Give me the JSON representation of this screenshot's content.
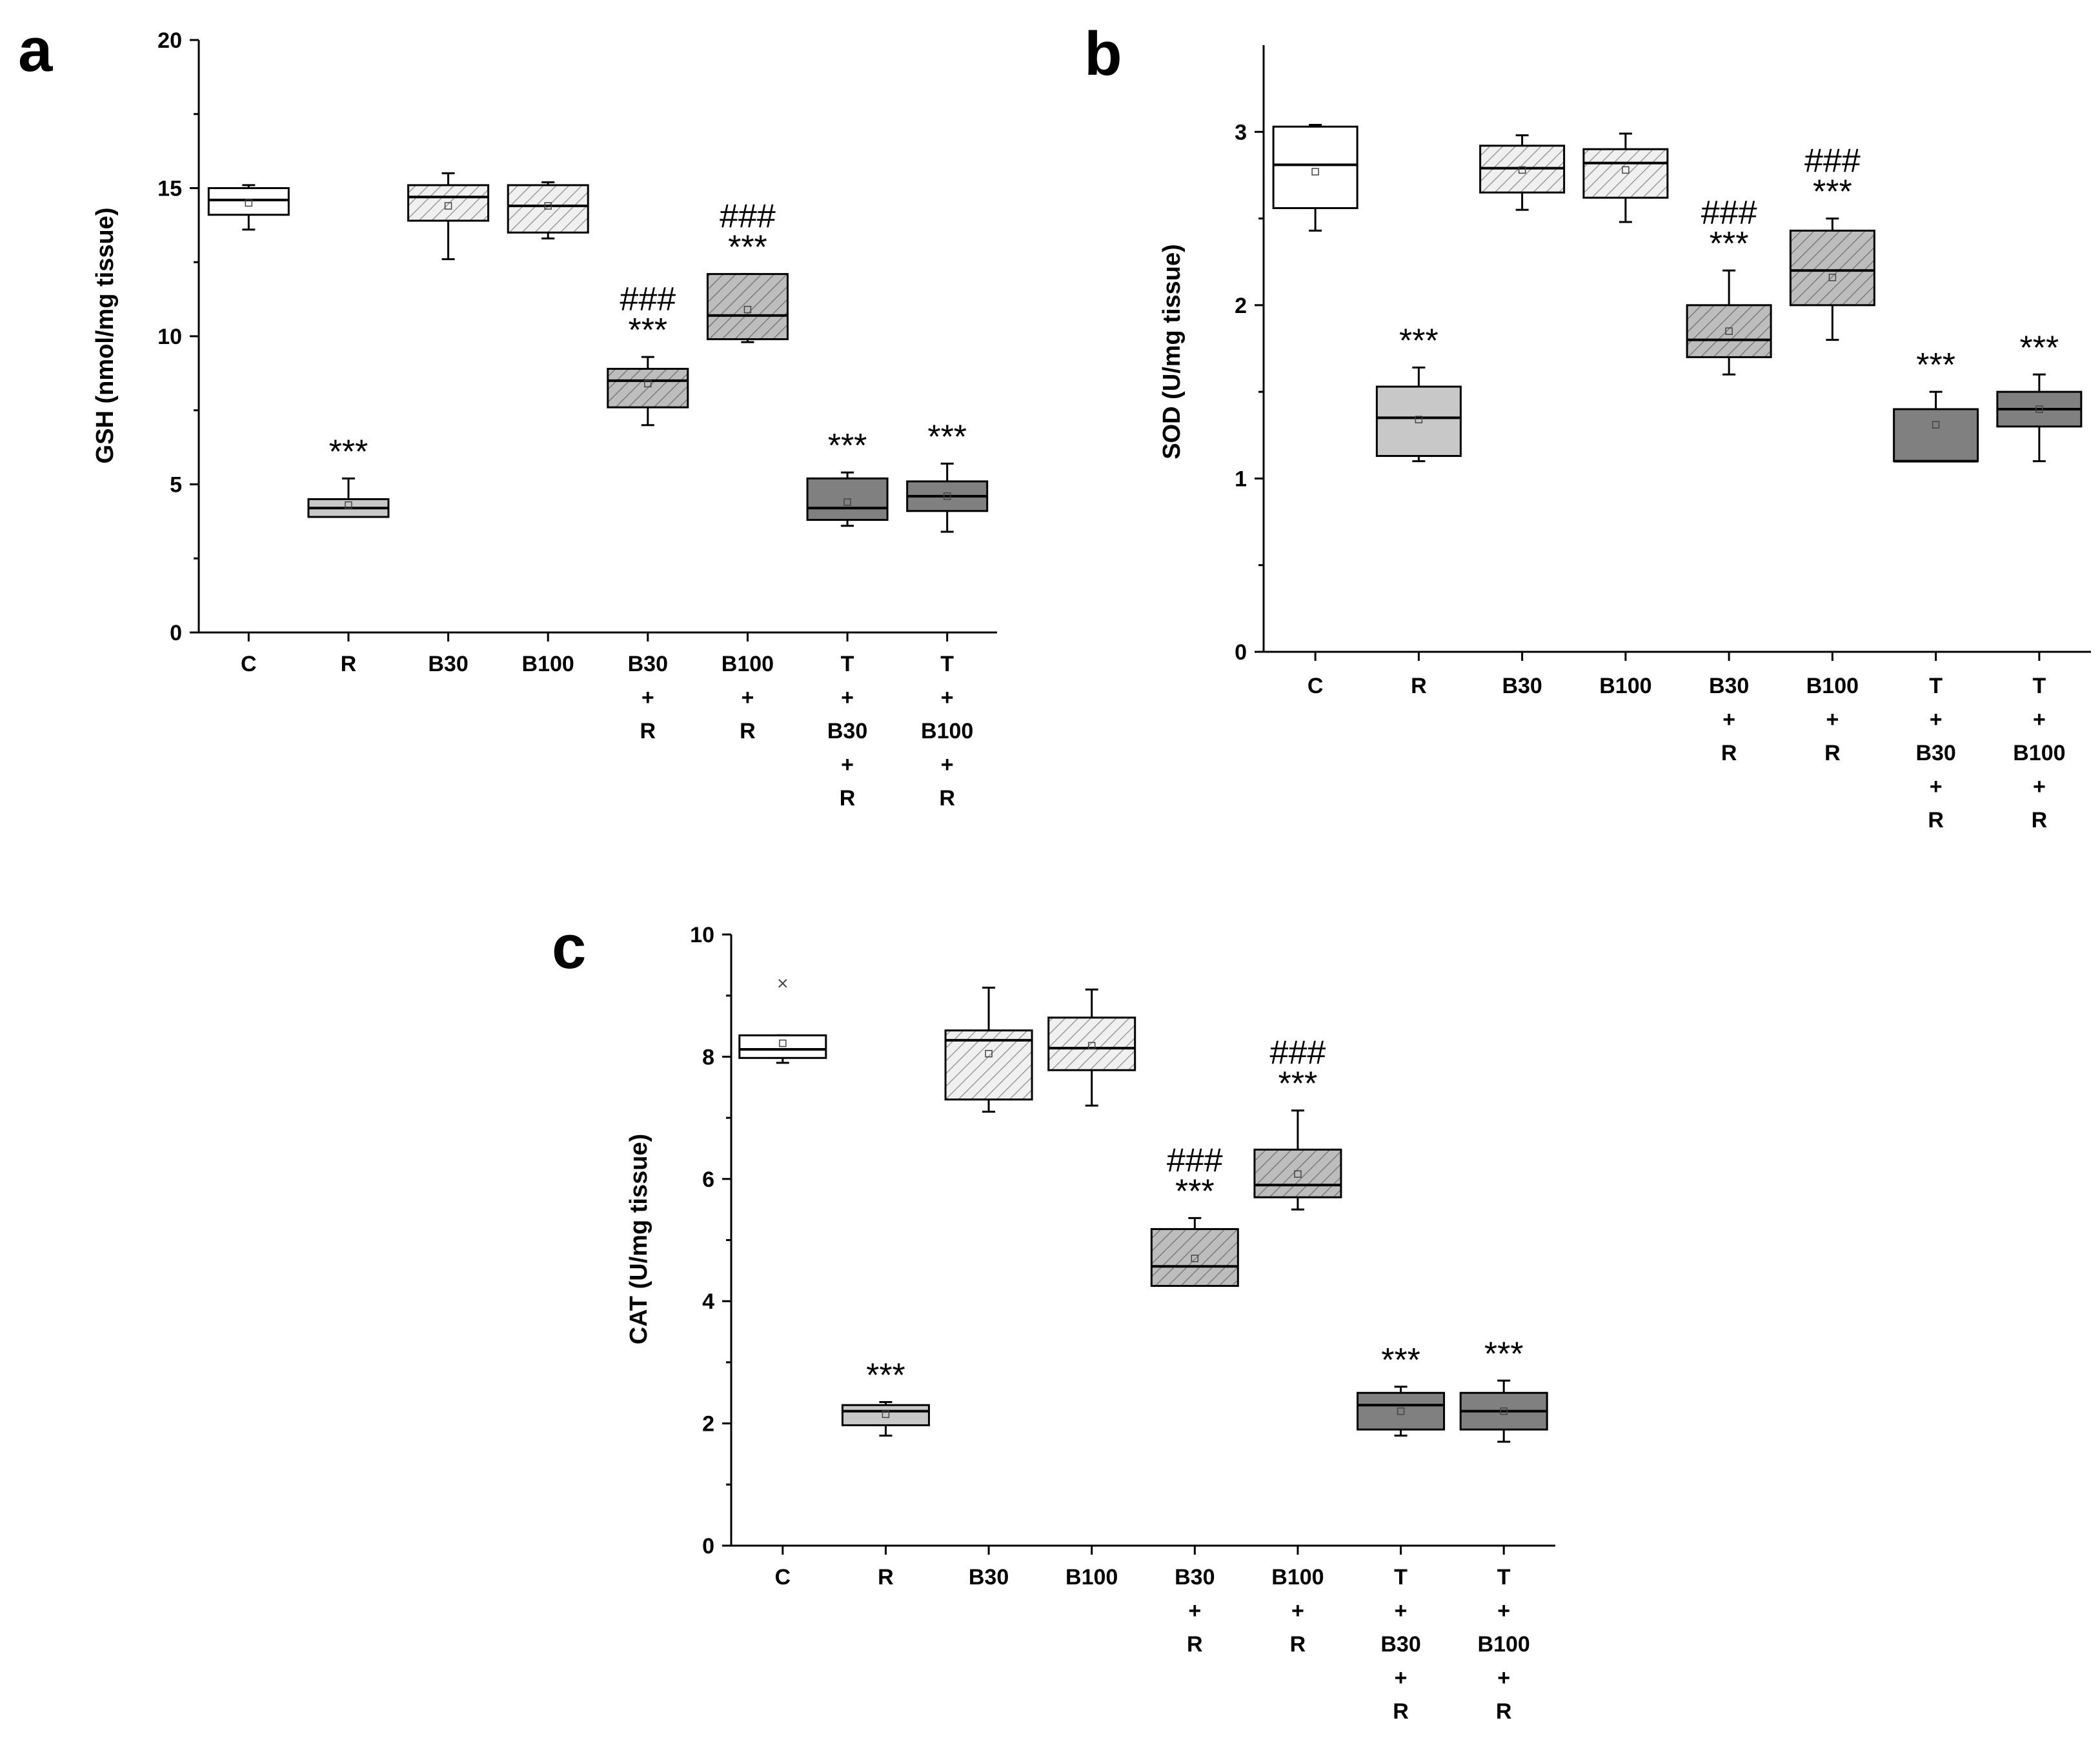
{
  "chart_data": [
    {
      "id": "a",
      "panel_label": "a",
      "type": "box",
      "ylabel": "GSH (nmol/mg tissue)",
      "ylim": [
        0,
        20
      ],
      "yticks": [
        "0",
        "5",
        "10",
        "15",
        "20"
      ],
      "categories": [
        [
          "C"
        ],
        [
          "R"
        ],
        [
          "B30"
        ],
        [
          "B100"
        ],
        [
          "B30",
          "+",
          "R"
        ],
        [
          "B100",
          "+",
          "R"
        ],
        [
          "T",
          "+",
          "B30",
          "+",
          "R"
        ],
        [
          "T",
          "+",
          "B100",
          "+",
          "R"
        ]
      ],
      "boxes": [
        {
          "min": 13.6,
          "q1": 14.1,
          "median": 14.6,
          "q3": 15.0,
          "max": 15.1,
          "mean": 14.5,
          "fill": "white",
          "stars": "",
          "hashes": ""
        },
        {
          "min": 3.9,
          "q1": 3.9,
          "median": 4.2,
          "q3": 4.5,
          "max": 5.2,
          "mean": 4.3,
          "fill": "lightgray",
          "stars": "***",
          "hashes": ""
        },
        {
          "min": 12.6,
          "q1": 13.9,
          "median": 14.7,
          "q3": 15.1,
          "max": 15.5,
          "mean": 14.4,
          "fill": "hatch-light",
          "stars": "",
          "hashes": ""
        },
        {
          "min": 13.3,
          "q1": 13.5,
          "median": 14.4,
          "q3": 15.1,
          "max": 15.2,
          "mean": 14.4,
          "fill": "hatch-light",
          "stars": "",
          "hashes": ""
        },
        {
          "min": 7.0,
          "q1": 7.6,
          "median": 8.5,
          "q3": 8.9,
          "max": 9.3,
          "mean": 8.4,
          "fill": "hatch-dark",
          "stars": "***",
          "hashes": "###"
        },
        {
          "min": 9.8,
          "q1": 9.9,
          "median": 10.7,
          "q3": 12.1,
          "max": 12.1,
          "mean": 10.9,
          "fill": "hatch-dark",
          "stars": "***",
          "hashes": "###"
        },
        {
          "min": 3.6,
          "q1": 3.8,
          "median": 4.2,
          "q3": 5.2,
          "max": 5.4,
          "mean": 4.4,
          "fill": "darkgray",
          "stars": "***",
          "hashes": ""
        },
        {
          "min": 3.4,
          "q1": 4.1,
          "median": 4.6,
          "q3": 5.1,
          "max": 5.7,
          "mean": 4.6,
          "fill": "darkgray",
          "stars": "***",
          "hashes": ""
        }
      ]
    },
    {
      "id": "b",
      "panel_label": "b",
      "type": "box",
      "ylabel": "SOD (U/mg tissue)",
      "ylim": [
        0,
        3.5
      ],
      "yticks": [
        "0",
        "1",
        "2",
        "3"
      ],
      "categories": [
        [
          "C"
        ],
        [
          "R"
        ],
        [
          "B30"
        ],
        [
          "B100"
        ],
        [
          "B30",
          "+",
          "R"
        ],
        [
          "B100",
          "+",
          "R"
        ],
        [
          "T",
          "+",
          "B30",
          "+",
          "R"
        ],
        [
          "T",
          "+",
          "B100",
          "+",
          "R"
        ]
      ],
      "boxes": [
        {
          "min": 2.43,
          "q1": 2.56,
          "median": 2.81,
          "q3": 3.03,
          "max": 3.04,
          "mean": 2.77,
          "fill": "white",
          "stars": "",
          "hashes": ""
        },
        {
          "min": 1.1,
          "q1": 1.13,
          "median": 1.35,
          "q3": 1.53,
          "max": 1.64,
          "mean": 1.34,
          "fill": "lightgray",
          "stars": "***",
          "hashes": ""
        },
        {
          "min": 2.55,
          "q1": 2.65,
          "median": 2.79,
          "q3": 2.92,
          "max": 2.98,
          "mean": 2.78,
          "fill": "hatch-light",
          "stars": "",
          "hashes": ""
        },
        {
          "min": 2.48,
          "q1": 2.62,
          "median": 2.82,
          "q3": 2.9,
          "max": 2.99,
          "mean": 2.78,
          "fill": "hatch-light",
          "stars": "",
          "hashes": ""
        },
        {
          "min": 1.6,
          "q1": 1.7,
          "median": 1.8,
          "q3": 2.0,
          "max": 2.2,
          "mean": 1.85,
          "fill": "hatch-dark",
          "stars": "***",
          "hashes": "###"
        },
        {
          "min": 1.8,
          "q1": 2.0,
          "median": 2.2,
          "q3": 2.43,
          "max": 2.5,
          "mean": 2.16,
          "fill": "hatch-dark",
          "stars": "***",
          "hashes": "###"
        },
        {
          "min": 1.1,
          "q1": 1.1,
          "median": 1.1,
          "q3": 1.4,
          "max": 1.5,
          "mean": 1.31,
          "fill": "darkgray",
          "stars": "***",
          "hashes": ""
        },
        {
          "min": 1.1,
          "q1": 1.3,
          "median": 1.4,
          "q3": 1.5,
          "max": 1.6,
          "mean": 1.4,
          "fill": "darkgray",
          "stars": "***",
          "hashes": ""
        }
      ]
    },
    {
      "id": "c",
      "panel_label": "c",
      "type": "box",
      "ylabel": "CAT (U/mg tissue)",
      "ylim": [
        0,
        10
      ],
      "yticks": [
        "0",
        "2",
        "4",
        "6",
        "8",
        "10"
      ],
      "categories": [
        [
          "C"
        ],
        [
          "R"
        ],
        [
          "B30"
        ],
        [
          "B100"
        ],
        [
          "B30",
          "+",
          "R"
        ],
        [
          "B100",
          "+",
          "R"
        ],
        [
          "T",
          "+",
          "B30",
          "+",
          "R"
        ],
        [
          "T",
          "+",
          "B100",
          "+",
          "R"
        ]
      ],
      "boxes": [
        {
          "min": 7.9,
          "q1": 7.98,
          "median": 8.12,
          "q3": 8.35,
          "max": 8.35,
          "mean": 8.22,
          "outlier": 9.2,
          "fill": "white",
          "stars": "",
          "hashes": ""
        },
        {
          "min": 1.8,
          "q1": 1.97,
          "median": 2.2,
          "q3": 2.3,
          "max": 2.35,
          "mean": 2.15,
          "fill": "lightgray",
          "stars": "***",
          "hashes": ""
        },
        {
          "min": 7.1,
          "q1": 7.3,
          "median": 8.27,
          "q3": 8.43,
          "max": 9.13,
          "mean": 8.05,
          "fill": "hatch-light",
          "stars": "",
          "hashes": ""
        },
        {
          "min": 7.2,
          "q1": 7.78,
          "median": 8.14,
          "q3": 8.64,
          "max": 9.1,
          "mean": 8.18,
          "fill": "hatch-light",
          "stars": "",
          "hashes": ""
        },
        {
          "min": 4.25,
          "q1": 4.25,
          "median": 4.57,
          "q3": 5.18,
          "max": 5.36,
          "mean": 4.7,
          "fill": "hatch-dark",
          "stars": "***",
          "hashes": "###"
        },
        {
          "min": 5.5,
          "q1": 5.7,
          "median": 5.9,
          "q3": 6.48,
          "max": 7.12,
          "mean": 6.08,
          "fill": "hatch-dark",
          "stars": "***",
          "hashes": "###"
        },
        {
          "min": 1.8,
          "q1": 1.9,
          "median": 2.3,
          "q3": 2.5,
          "max": 2.6,
          "mean": 2.2,
          "fill": "darkgray",
          "stars": "***",
          "hashes": ""
        },
        {
          "min": 1.7,
          "q1": 1.9,
          "median": 2.2,
          "q3": 2.5,
          "max": 2.7,
          "mean": 2.2,
          "fill": "darkgray",
          "stars": "***",
          "hashes": ""
        }
      ]
    }
  ],
  "colors": {
    "white": "#ffffff",
    "lightgray": "#c8c8c8",
    "hatch_light_bg": "#f0f0f0",
    "hatch_light_line": "#9a9a9a",
    "hatch_dark_bg": "#bdbdbd",
    "hatch_dark_line": "#7a7a7a",
    "darkgray": "#808080",
    "stroke": "#000000"
  }
}
